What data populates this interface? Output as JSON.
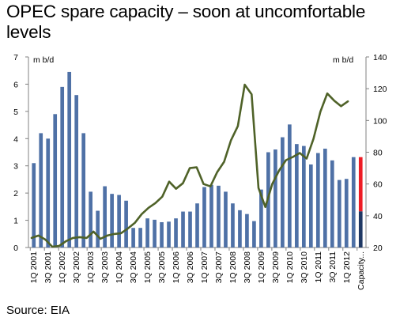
{
  "title": "OPEC spare capacity – soon at uncomfortable levels",
  "source": "Source: EIA",
  "chart_data": {
    "type": "bar+line",
    "title": "OPEC spare capacity – soon at uncomfortable levels",
    "left_unit": "m b/d",
    "right_unit": "m b/d",
    "ylim_left": [
      0,
      7
    ],
    "ylim_right": [
      20,
      140
    ],
    "yticks_left": [
      "0",
      "1",
      "2",
      "3",
      "4",
      "5",
      "6",
      "7"
    ],
    "yticks_right": [
      "20",
      "40",
      "60",
      "80",
      "100",
      "120",
      "140"
    ],
    "x_labels": [
      "1Q 2001",
      "3Q 2001",
      "1Q 2002",
      "3Q 2002",
      "1Q 2003",
      "3Q 2003",
      "1Q 2004",
      "3Q 2004",
      "1Q 2005",
      "3Q 2005",
      "1Q 2006",
      "3Q 2006",
      "1Q 2007",
      "3Q 2007",
      "1Q 2008",
      "3Q 2008",
      "1Q 2009",
      "3Q 2009",
      "1Q 2010",
      "3Q 2010",
      "1Q 2011",
      "3Q 2011",
      "1Q 2012",
      "Capacity..."
    ],
    "bar_color": "#4F71A6",
    "line_color": "#4F6228",
    "bars": [
      3.1,
      4.2,
      4.0,
      4.9,
      5.9,
      6.45,
      5.6,
      4.2,
      2.05,
      1.35,
      2.25,
      1.97,
      1.93,
      1.72,
      0.72,
      0.72,
      1.07,
      1.02,
      0.93,
      0.95,
      1.07,
      1.32,
      1.32,
      1.62,
      2.22,
      2.3,
      2.27,
      2.05,
      1.62,
      1.37,
      1.23,
      0.97,
      2.13,
      3.5,
      3.6,
      4.05,
      4.52,
      3.8,
      3.73,
      3.05,
      3.47,
      3.63,
      3.2,
      2.48,
      2.52,
      3.32
    ],
    "line": [
      26,
      27.5,
      25,
      20.5,
      21,
      24,
      26,
      26.5,
      26,
      30,
      25.5,
      27.5,
      28.5,
      29,
      32,
      35.5,
      41,
      45,
      48,
      52,
      61.5,
      57,
      60.5,
      70,
      70.5,
      60,
      58.5,
      67.5,
      74,
      87.5,
      96.5,
      122.5,
      116.5,
      57.5,
      45.5,
      60,
      68.5,
      75,
      77,
      79.5,
      76,
      88.5,
      105.5,
      117,
      112.5,
      109,
      112
    ],
    "capacity_bar": {
      "label": "Capacity...",
      "lower_value": 1.33,
      "lower_color": "#1F3864",
      "total": 3.32,
      "upper_color": "#EE1C25"
    }
  }
}
